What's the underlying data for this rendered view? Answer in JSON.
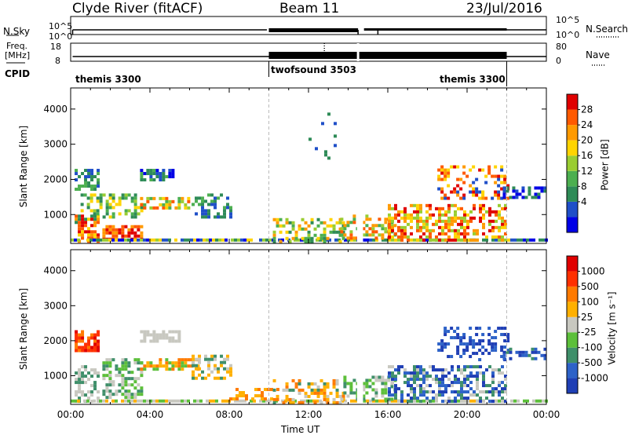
{
  "header": {
    "station": "Clyde River (fitACF)",
    "beam": "Beam 11",
    "date": "23/Jul/2016"
  },
  "top_panels": {
    "nsky_label": "N.Sky",
    "nsky_ticks": [
      "10^5",
      "10^0"
    ],
    "nsearch_label": "N.Search",
    "nsearch_ticks": [
      "10^5",
      "10^0"
    ],
    "freq_label_1": "Freq.",
    "freq_label_2": "[MHz]",
    "freq_ticks": [
      "18",
      "8"
    ],
    "nave_label": "Nave",
    "nave_ticks": [
      "80",
      "0"
    ],
    "cpid_label": "CPID",
    "cpid_segments": [
      {
        "name": "themis 3300",
        "start_h": 0,
        "end_h": 10.0
      },
      {
        "name": "twofsound 3503",
        "start_h": 10.0,
        "end_h": 22.0
      },
      {
        "name": "themis 3300",
        "start_h": 22.0,
        "end_h": 24.0
      }
    ]
  },
  "chart_data": [
    {
      "type": "heatmap",
      "name": "Power",
      "ylabel": "Slant Range [km]",
      "xlabel": "",
      "x_range_h": [
        0,
        24
      ],
      "ylim": [
        180,
        4600
      ],
      "yticks": [
        1000,
        2000,
        3000,
        4000
      ],
      "colorbar": {
        "label": "Power [dB]",
        "ticks": [
          "28",
          "24",
          "20",
          "16",
          "12",
          "8",
          "4"
        ],
        "colors": [
          "#0000e6",
          "#1f4fc8",
          "#2e8b57",
          "#4caf50",
          "#9acd32",
          "#ffd400",
          "#ff9a00",
          "#ff5a00",
          "#e00000"
        ]
      }
    },
    {
      "type": "heatmap",
      "name": "Velocity",
      "ylabel": "Slant Range [km]",
      "xlabel": "Time UT",
      "x_range_h": [
        0,
        24
      ],
      "ylim": [
        180,
        4600
      ],
      "yticks": [
        1000,
        2000,
        3000,
        4000
      ],
      "xticks": [
        "00:00",
        "04:00",
        "08:00",
        "12:00",
        "16:00",
        "20:00",
        "00:00"
      ],
      "colorbar": {
        "label": "Velocity [m s⁻¹]",
        "ticks": [
          "1000",
          "500",
          "100",
          "25",
          "-25",
          "-100",
          "-500",
          "-1000"
        ],
        "colors": [
          "#1f3fb5",
          "#2d62c8",
          "#3f8f6a",
          "#5cbf3a",
          "#c8c8c0",
          "#ffb000",
          "#ff7a00",
          "#ff3000",
          "#e00000"
        ]
      }
    }
  ]
}
